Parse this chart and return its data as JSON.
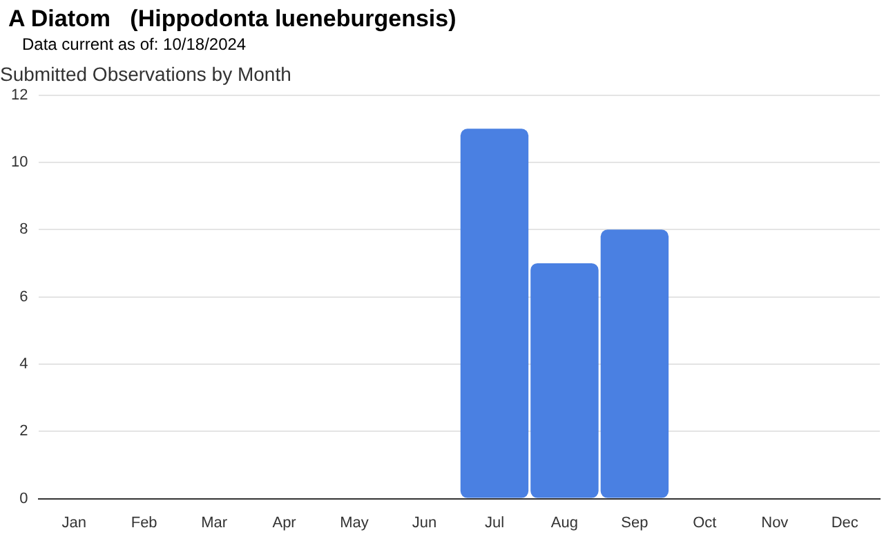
{
  "chart_data": {
    "type": "bar",
    "title": "A Diatom   (Hippodonta lueneburgensis)",
    "subtitle": "Data current as of: 10/18/2024",
    "annotations": [
      "Submitted Observations by Month"
    ],
    "categories": [
      "Jan",
      "Feb",
      "Mar",
      "Apr",
      "May",
      "Jun",
      "Jul",
      "Aug",
      "Sep",
      "Oct",
      "Nov",
      "Dec"
    ],
    "values": [
      0,
      0,
      0,
      0,
      0,
      0,
      11,
      7,
      8,
      0,
      0,
      0
    ],
    "color": "#4a80e2",
    "ylim": [
      0,
      12
    ],
    "yticks": [
      0,
      2,
      4,
      6,
      8,
      10,
      12
    ],
    "grid": "y",
    "legend": false
  }
}
